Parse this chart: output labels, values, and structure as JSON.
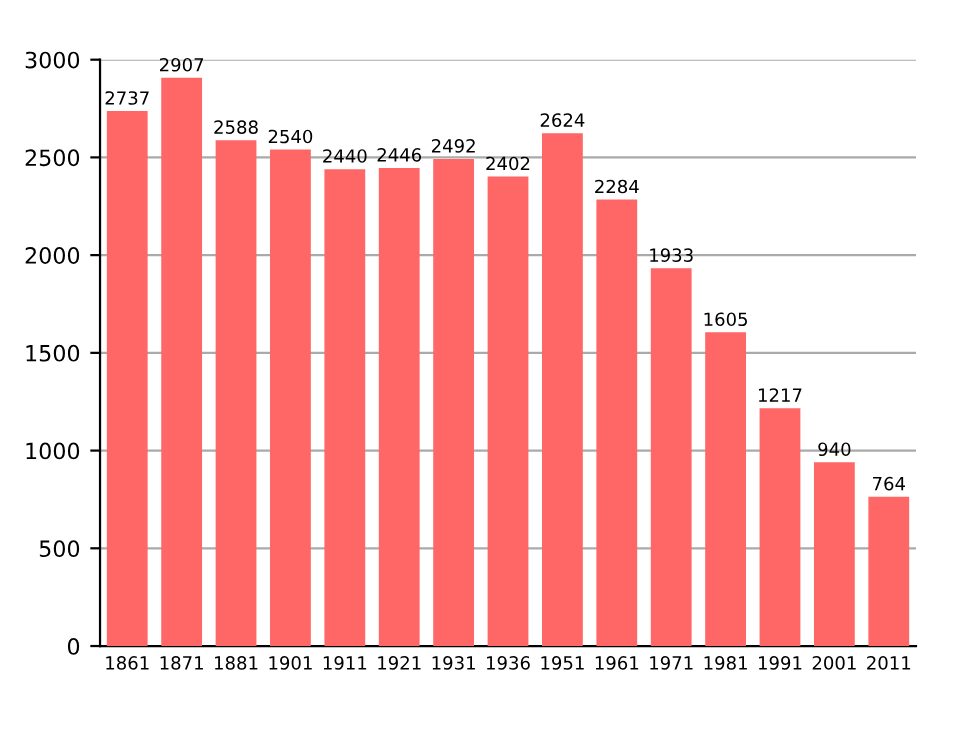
{
  "chart_data": {
    "type": "bar",
    "categories": [
      "1861",
      "1871",
      "1881",
      "1901",
      "1911",
      "1921",
      "1931",
      "1936",
      "1951",
      "1961",
      "1971",
      "1981",
      "1991",
      "2001",
      "2011"
    ],
    "values": [
      2737,
      2907,
      2588,
      2540,
      2440,
      2446,
      2492,
      2402,
      2624,
      2284,
      1933,
      1605,
      1217,
      940,
      764
    ],
    "color": "#ff6666",
    "ylim": [
      0,
      3000
    ],
    "yticks": [
      0,
      500,
      1000,
      1500,
      2000,
      2500,
      3000
    ],
    "grid": "y",
    "data_labels": true
  }
}
